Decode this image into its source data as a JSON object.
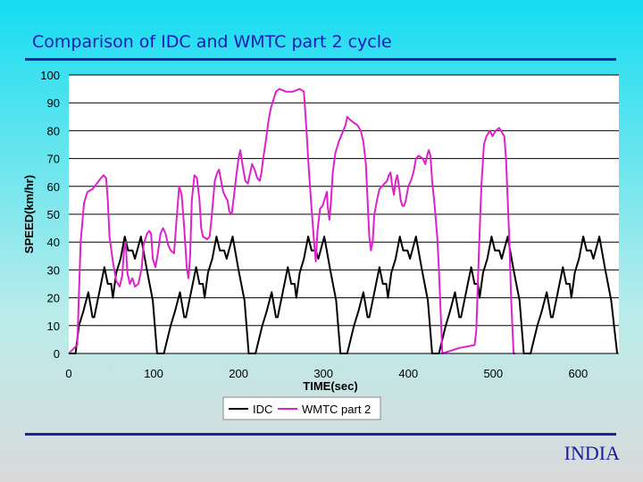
{
  "slide": {
    "title": "Comparison of IDC and WMTC part 2 cycle",
    "footer": "INDIA"
  },
  "colors": {
    "idc": "#000000",
    "wmtc": "#dd22cc",
    "rule": "#1f1fa8",
    "title": "#1a1ab8"
  },
  "chart_data": {
    "type": "line",
    "title": "",
    "xlabel": "TIME(sec)",
    "ylabel": "SPEED(km/hr)",
    "xlim": [
      0,
      648
    ],
    "ylim": [
      0,
      100
    ],
    "xticks": [
      0,
      100,
      200,
      300,
      400,
      500,
      600
    ],
    "yticks": [
      0,
      10,
      20,
      30,
      40,
      50,
      60,
      70,
      80,
      90,
      100
    ],
    "grid": "horizontal",
    "legend": "bottom",
    "series": [
      {
        "name": "IDC",
        "color": "#000000",
        "points": [
          [
            0,
            0
          ],
          [
            8,
            0
          ],
          [
            12,
            10
          ],
          [
            17,
            15
          ],
          [
            23,
            22
          ],
          [
            28,
            13
          ],
          [
            30,
            13
          ],
          [
            36,
            22
          ],
          [
            42,
            31
          ],
          [
            46,
            25
          ],
          [
            50,
            25
          ],
          [
            52,
            20
          ],
          [
            56,
            29
          ],
          [
            61,
            34
          ],
          [
            66,
            42
          ],
          [
            70,
            37
          ],
          [
            75,
            37
          ],
          [
            78,
            34
          ],
          [
            85,
            42
          ],
          [
            92,
            30
          ],
          [
            99,
            19
          ],
          [
            104,
            0
          ],
          [
            112,
            0
          ],
          [
            120,
            10
          ],
          [
            125,
            15
          ],
          [
            131,
            22
          ],
          [
            136,
            13
          ],
          [
            138,
            13
          ],
          [
            144,
            22
          ],
          [
            150,
            31
          ],
          [
            154,
            25
          ],
          [
            158,
            25
          ],
          [
            160,
            20
          ],
          [
            164,
            29
          ],
          [
            169,
            34
          ],
          [
            174,
            42
          ],
          [
            178,
            37
          ],
          [
            183,
            37
          ],
          [
            186,
            34
          ],
          [
            193,
            42
          ],
          [
            200,
            30
          ],
          [
            207,
            19
          ],
          [
            212,
            0
          ],
          [
            220,
            0
          ],
          [
            228,
            10
          ],
          [
            233,
            15
          ],
          [
            239,
            22
          ],
          [
            244,
            13
          ],
          [
            246,
            13
          ],
          [
            252,
            22
          ],
          [
            258,
            31
          ],
          [
            262,
            25
          ],
          [
            266,
            25
          ],
          [
            268,
            20
          ],
          [
            272,
            29
          ],
          [
            277,
            34
          ],
          [
            282,
            42
          ],
          [
            286,
            37
          ],
          [
            291,
            37
          ],
          [
            294,
            34
          ],
          [
            301,
            42
          ],
          [
            308,
            30
          ],
          [
            315,
            19
          ],
          [
            320,
            0
          ],
          [
            328,
            0
          ],
          [
            336,
            10
          ],
          [
            341,
            15
          ],
          [
            347,
            22
          ],
          [
            352,
            13
          ],
          [
            354,
            13
          ],
          [
            360,
            22
          ],
          [
            366,
            31
          ],
          [
            370,
            25
          ],
          [
            374,
            25
          ],
          [
            376,
            20
          ],
          [
            380,
            29
          ],
          [
            385,
            34
          ],
          [
            390,
            42
          ],
          [
            394,
            37
          ],
          [
            399,
            37
          ],
          [
            402,
            34
          ],
          [
            409,
            42
          ],
          [
            416,
            30
          ],
          [
            423,
            19
          ],
          [
            428,
            0
          ],
          [
            436,
            0
          ],
          [
            444,
            10
          ],
          [
            449,
            15
          ],
          [
            455,
            22
          ],
          [
            460,
            13
          ],
          [
            462,
            13
          ],
          [
            468,
            22
          ],
          [
            474,
            31
          ],
          [
            478,
            25
          ],
          [
            482,
            25
          ],
          [
            484,
            20
          ],
          [
            488,
            29
          ],
          [
            493,
            34
          ],
          [
            498,
            42
          ],
          [
            502,
            37
          ],
          [
            507,
            37
          ],
          [
            510,
            34
          ],
          [
            517,
            42
          ],
          [
            524,
            30
          ],
          [
            531,
            19
          ],
          [
            536,
            0
          ],
          [
            544,
            0
          ],
          [
            552,
            10
          ],
          [
            557,
            15
          ],
          [
            563,
            22
          ],
          [
            568,
            13
          ],
          [
            570,
            13
          ],
          [
            576,
            22
          ],
          [
            582,
            31
          ],
          [
            586,
            25
          ],
          [
            590,
            25
          ],
          [
            592,
            20
          ],
          [
            596,
            29
          ],
          [
            601,
            34
          ],
          [
            606,
            42
          ],
          [
            610,
            37
          ],
          [
            615,
            37
          ],
          [
            618,
            34
          ],
          [
            625,
            42
          ],
          [
            632,
            30
          ],
          [
            639,
            19
          ],
          [
            646,
            0
          ]
        ]
      },
      {
        "name": "WMTC part 2",
        "color": "#dd22cc",
        "points": [
          [
            0,
            0
          ],
          [
            10,
            3
          ],
          [
            14,
            40
          ],
          [
            18,
            54
          ],
          [
            22,
            58
          ],
          [
            28,
            59
          ],
          [
            33,
            61
          ],
          [
            38,
            63
          ],
          [
            41,
            64
          ],
          [
            44,
            63
          ],
          [
            46,
            55
          ],
          [
            48,
            42
          ],
          [
            52,
            33
          ],
          [
            56,
            26
          ],
          [
            60,
            24
          ],
          [
            63,
            28
          ],
          [
            65,
            37
          ],
          [
            67,
            40
          ],
          [
            69,
            29
          ],
          [
            72,
            25
          ],
          [
            75,
            27
          ],
          [
            78,
            24
          ],
          [
            82,
            25
          ],
          [
            86,
            31
          ],
          [
            88,
            39
          ],
          [
            92,
            43
          ],
          [
            95,
            44
          ],
          [
            97,
            43
          ],
          [
            99,
            34
          ],
          [
            102,
            31
          ],
          [
            105,
            36
          ],
          [
            108,
            43
          ],
          [
            111,
            45
          ],
          [
            114,
            43
          ],
          [
            117,
            39
          ],
          [
            120,
            37
          ],
          [
            124,
            36
          ],
          [
            127,
            48
          ],
          [
            130,
            60
          ],
          [
            133,
            57
          ],
          [
            136,
            45
          ],
          [
            139,
            31
          ],
          [
            141,
            27
          ],
          [
            143,
            35
          ],
          [
            145,
            55
          ],
          [
            148,
            64
          ],
          [
            151,
            63
          ],
          [
            154,
            55
          ],
          [
            156,
            45
          ],
          [
            158,
            42
          ],
          [
            163,
            41
          ],
          [
            166,
            42
          ],
          [
            168,
            48
          ],
          [
            170,
            55
          ],
          [
            172,
            62
          ],
          [
            175,
            65
          ],
          [
            177,
            66
          ],
          [
            180,
            61
          ],
          [
            182,
            58
          ],
          [
            185,
            56
          ],
          [
            187,
            55
          ],
          [
            189,
            51
          ],
          [
            192,
            50
          ],
          [
            194,
            55
          ],
          [
            197,
            63
          ],
          [
            200,
            70
          ],
          [
            202,
            73
          ],
          [
            205,
            67
          ],
          [
            208,
            62
          ],
          [
            211,
            61
          ],
          [
            213,
            64
          ],
          [
            216,
            68
          ],
          [
            219,
            66
          ],
          [
            222,
            63
          ],
          [
            225,
            62
          ],
          [
            227,
            65
          ],
          [
            229,
            70
          ],
          [
            232,
            76
          ],
          [
            235,
            83
          ],
          [
            238,
            88
          ],
          [
            241,
            91
          ],
          [
            244,
            94
          ],
          [
            248,
            95
          ],
          [
            256,
            94
          ],
          [
            264,
            94
          ],
          [
            272,
            95
          ],
          [
            277,
            94
          ],
          [
            280,
            80
          ],
          [
            283,
            65
          ],
          [
            286,
            52
          ],
          [
            289,
            40
          ],
          [
            291,
            33
          ],
          [
            293,
            44
          ],
          [
            296,
            52
          ],
          [
            299,
            53
          ],
          [
            302,
            56
          ],
          [
            304,
            58
          ],
          [
            305,
            53
          ],
          [
            307,
            48
          ],
          [
            309,
            55
          ],
          [
            311,
            65
          ],
          [
            314,
            72
          ],
          [
            318,
            76
          ],
          [
            322,
            79
          ],
          [
            326,
            82
          ],
          [
            328,
            85
          ],
          [
            331,
            84
          ],
          [
            335,
            83
          ],
          [
            340,
            82
          ],
          [
            344,
            80
          ],
          [
            347,
            76
          ],
          [
            350,
            68
          ],
          [
            352,
            55
          ],
          [
            354,
            42
          ],
          [
            356,
            37
          ],
          [
            358,
            40
          ],
          [
            360,
            50
          ],
          [
            363,
            55
          ],
          [
            366,
            59
          ],
          [
            369,
            60
          ],
          [
            372,
            61
          ],
          [
            375,
            62
          ],
          [
            377,
            64
          ],
          [
            379,
            65
          ],
          [
            381,
            60
          ],
          [
            383,
            57
          ],
          [
            385,
            62
          ],
          [
            387,
            64
          ],
          [
            389,
            60
          ],
          [
            391,
            55
          ],
          [
            393,
            53
          ],
          [
            395,
            53
          ],
          [
            397,
            55
          ],
          [
            400,
            60
          ],
          [
            403,
            62
          ],
          [
            406,
            65
          ],
          [
            409,
            70
          ],
          [
            412,
            71
          ],
          [
            417,
            70
          ],
          [
            420,
            68
          ],
          [
            422,
            71
          ],
          [
            424,
            73
          ],
          [
            426,
            71
          ],
          [
            428,
            62
          ],
          [
            431,
            53
          ],
          [
            434,
            42
          ],
          [
            436,
            30
          ],
          [
            440,
            0
          ],
          [
            460,
            2
          ],
          [
            478,
            3
          ],
          [
            480,
            8
          ],
          [
            483,
            35
          ],
          [
            486,
            60
          ],
          [
            489,
            75
          ],
          [
            492,
            78
          ],
          [
            496,
            80
          ],
          [
            499,
            78
          ],
          [
            503,
            80
          ],
          [
            507,
            81
          ],
          [
            511,
            79
          ],
          [
            513,
            78
          ],
          [
            515,
            70
          ],
          [
            517,
            55
          ],
          [
            519,
            40
          ],
          [
            521,
            20
          ],
          [
            524,
            0
          ],
          [
            526,
            0
          ]
        ]
      }
    ]
  }
}
